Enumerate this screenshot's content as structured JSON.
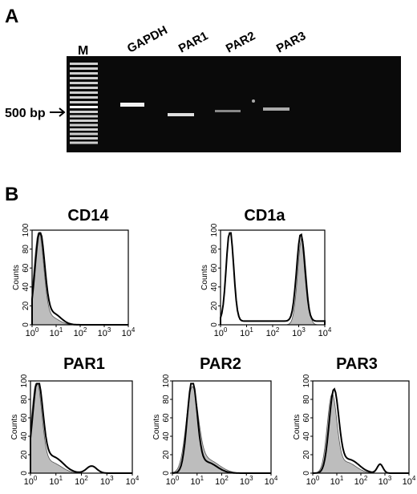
{
  "panel_a": {
    "label": "A",
    "marker": "M",
    "lanes": [
      "GAPDH",
      "PAR1",
      "PAR2",
      "PAR3"
    ],
    "size_marker": "500 bp"
  },
  "panel_b": {
    "label": "B",
    "y_axis_label": "Counts",
    "yticks": [
      "0",
      "20",
      "40",
      "60",
      "80",
      "100"
    ],
    "xticks": [
      {
        "base": "10",
        "exp": "0"
      },
      {
        "base": "10",
        "exp": "1"
      },
      {
        "base": "10",
        "exp": "2"
      },
      {
        "base": "10",
        "exp": "3"
      },
      {
        "base": "10",
        "exp": "4"
      }
    ],
    "plots": [
      {
        "title": "CD14"
      },
      {
        "title": "CD1a"
      },
      {
        "title": "PAR1"
      },
      {
        "title": "PAR2"
      },
      {
        "title": "PAR3"
      }
    ]
  }
}
